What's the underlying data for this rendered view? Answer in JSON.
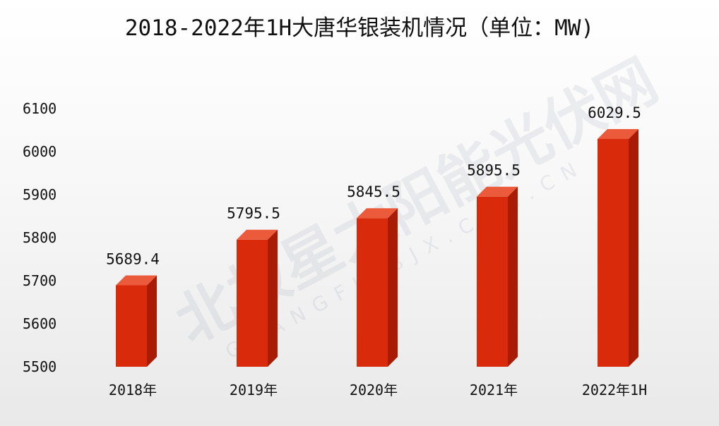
{
  "chart_data": {
    "type": "bar",
    "title": "2018-2022年1H大唐华银装机情况（单位：MW)",
    "categories": [
      "2018年",
      "2019年",
      "2020年",
      "2021年",
      "2022年1H"
    ],
    "values": [
      5689.4,
      5795.5,
      5845.5,
      5895.5,
      6029.5
    ],
    "data_labels": [
      "5689.4",
      "5795.5",
      "5845.5",
      "5895.5",
      "6029.5"
    ],
    "yticks": [
      5500,
      5600,
      5700,
      5800,
      5900,
      6000,
      6100
    ],
    "ylim": [
      5500,
      6100
    ],
    "xlabel": "",
    "ylabel": "",
    "grid": false,
    "legend": "none",
    "bar_color": "#d92b0b",
    "bar_side_color": "#a81c05",
    "bar_top_color": "#ea5a3b"
  },
  "watermark": {
    "text_cn": "北极星太阳能光伏网",
    "text_en": "GUANGFU.BJX.COM.CN"
  }
}
